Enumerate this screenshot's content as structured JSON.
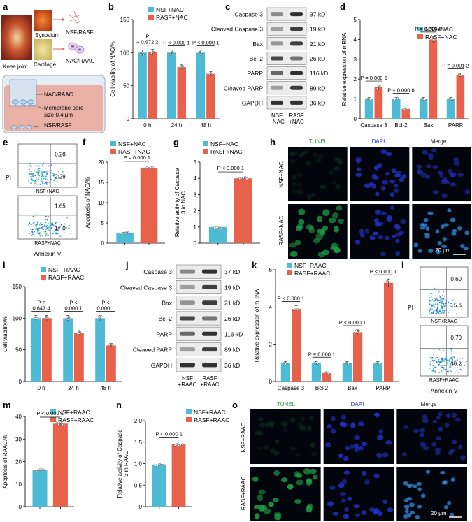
{
  "colors": {
    "nsf": "#4dbbd5",
    "rasf": "#e8614a",
    "tunel": "#1fa04a",
    "dapi": "#2233cc",
    "flowdot": "#3a9bd9"
  },
  "panel_labels": [
    "a",
    "b",
    "c",
    "d",
    "e",
    "f",
    "g",
    "h",
    "i",
    "j",
    "k",
    "l",
    "m",
    "n",
    "o"
  ],
  "a": {
    "knee": "Knee joint",
    "synovium": "Synovium",
    "cartilage": "Cartilage",
    "nsf_rasf": "NSF/RASF",
    "nac_raac": "NAC/RAAC",
    "trans_top": "NAC/RAAC",
    "membrane": "Membrane pore",
    "pore": "size 0.4 μm",
    "trans_bottom": "NSF/RASF"
  },
  "b": {
    "ylabel": "Cell viability of NAC/%",
    "legend": [
      "NSF+NAC",
      "RASF+NAC"
    ],
    "chart_data": {
      "type": "bar",
      "categories": [
        "0 h",
        "24 h",
        "48 h"
      ],
      "ylim": [
        0,
        150
      ],
      "yticks": [
        "0",
        "50",
        "100",
        "150"
      ],
      "series": [
        {
          "name": "NSF+NAC",
          "values": [
            100,
            100,
            100
          ]
        },
        {
          "name": "RASF+NAC",
          "values": [
            101,
            78,
            68
          ]
        }
      ],
      "pvals": [
        [
          "P",
          "= 0.972 2"
        ],
        [
          "P < 0.000 1"
        ],
        [
          "P < 0.000 1"
        ]
      ]
    }
  },
  "c": {
    "rows": [
      "Caspase 3",
      "Cleaved Caspase 3",
      "Bax",
      "Bcl-2",
      "PARP",
      "Cleaved PARP",
      "GAPDH"
    ],
    "kd": [
      "37 kD",
      "19 kD",
      "21 kD",
      "26 kD",
      "116 kD",
      "89 kD",
      "36 kD"
    ],
    "lanes": [
      [
        "NSF",
        "+NAC"
      ],
      [
        "RASF",
        "+NAC"
      ]
    ]
  },
  "d": {
    "ylabel": "Relative expression of mRNA",
    "legend": [
      "NSF+NAC",
      "RASF+NAC"
    ],
    "chart_data": {
      "type": "bar",
      "categories": [
        "Caspase 3",
        "Bcl-2",
        "Bax",
        "PARP"
      ],
      "ylim": [
        0,
        5
      ],
      "yticks": [
        "0",
        "1",
        "2",
        "3",
        "4",
        "5"
      ],
      "series": [
        {
          "name": "NSF+NAC",
          "values": [
            1,
            1,
            1,
            1
          ]
        },
        {
          "name": "RASF+NAC",
          "values": [
            1.6,
            0.5,
            4.0,
            2.2
          ]
        }
      ],
      "pvals": [
        "P = 0.000 5",
        "P = 0.000 6",
        "P = 0.000 5",
        "P = 0.001 2"
      ]
    }
  },
  "e": {
    "ylabel": "PI",
    "xlabel": "Annexin V",
    "top": {
      "ul": "0.28",
      "lr": "2.29",
      "name": "NSF+NAC"
    },
    "bottom": {
      "ul": "1.65",
      "lr": "17.0",
      "name": "RASF+NAC"
    }
  },
  "f": {
    "ylabel": "Apoptosis of NAC/%",
    "legend": [
      "NSF+NAC",
      "RASF+NAC"
    ],
    "chart_data": {
      "type": "bar",
      "ylim": [
        0,
        20
      ],
      "yticks": [
        "0",
        "5",
        "10",
        "15",
        "20"
      ],
      "series": [
        {
          "name": "NSF+NAC",
          "values": [
            2.6
          ]
        },
        {
          "name": "RASF+NAC",
          "values": [
            18.6
          ]
        }
      ],
      "pval": "P < 0.000 1"
    }
  },
  "g": {
    "ylabel": "Relative activity of Caspase 3 in NAC",
    "legend": [
      "NSF+NAC",
      "RASF+NAC"
    ],
    "chart_data": {
      "type": "bar",
      "ylim": [
        0,
        5
      ],
      "yticks": [
        "0",
        "1",
        "2",
        "3",
        "4",
        "5"
      ],
      "series": [
        {
          "name": "NSF+NAC",
          "values": [
            1.0
          ]
        },
        {
          "name": "RASF+NAC",
          "values": [
            4.0
          ]
        }
      ],
      "pval": "P < 0.000 1"
    }
  },
  "h": {
    "cols": [
      "TUNEL",
      "DAPI",
      "Merge"
    ],
    "rows": [
      "NSF+NAC",
      "RASF+NAC"
    ],
    "scale": "20 μm"
  },
  "i": {
    "ylabel": "Cell viability/%",
    "legend": [
      "NSF+RAAC",
      "RASF+RAAC"
    ],
    "chart_data": {
      "type": "bar",
      "categories": [
        "0 h",
        "24 h",
        "48 h"
      ],
      "ylim": [
        0,
        150
      ],
      "yticks": [
        "0",
        "50",
        "100",
        "150"
      ],
      "series": [
        {
          "name": "NSF+RAAC",
          "values": [
            100,
            100,
            100
          ]
        },
        {
          "name": "RASF+RAAC",
          "values": [
            100,
            77,
            57
          ]
        }
      ],
      "pvals": [
        [
          "P =",
          "0.647 4"
        ],
        [
          "P <",
          "0.000 1"
        ],
        [
          "P <",
          "0.000 1"
        ]
      ]
    }
  },
  "j": {
    "rows": [
      "Caspase 3",
      "Cleaved Caspase 3",
      "Bax",
      "Bcl-2",
      "PARP",
      "Cleaved PARP",
      "GAPDH"
    ],
    "kd": [
      "37 kD",
      "19 kD",
      "21 kD",
      "26 kD",
      "116 kD",
      "89 kD",
      "36 kD"
    ],
    "lanes": [
      [
        "NSF",
        "+RAAC"
      ],
      [
        "RASF",
        "+RAAC"
      ]
    ]
  },
  "k": {
    "ylabel": "Relative expression of mRNA",
    "legend": [
      "NSF+RAAC",
      "RASF+RAAC"
    ],
    "chart_data": {
      "type": "bar",
      "categories": [
        "Caspase 3",
        "Bcl-2",
        "Bax",
        "PARP"
      ],
      "ylim": [
        0,
        6
      ],
      "yticks": [
        "0",
        "2",
        "4",
        "6"
      ],
      "series": [
        {
          "name": "NSF+RAAC",
          "values": [
            1,
            1,
            1,
            1
          ]
        },
        {
          "name": "RASF+RAAC",
          "values": [
            3.9,
            0.45,
            2.65,
            5.3
          ]
        }
      ],
      "pvals": [
        "P < 0.000 1",
        "P = 0.000 1",
        "P < 0.000 1",
        "P < 0.000 1"
      ]
    }
  },
  "l": {
    "ylabel": "PI",
    "xlabel": "Annexin V",
    "top": {
      "ul": "0.60",
      "lr": "15.6",
      "name": "NSF+RAAC"
    },
    "bottom": {
      "ul": "0.70",
      "lr": "36.2",
      "name": "RASF+RAAC"
    }
  },
  "m": {
    "ylabel": "Apoptosis of RAAC/%",
    "legend": [
      "NSF+RAAC",
      "RASF+RAAC"
    ],
    "chart_data": {
      "type": "bar",
      "ylim": [
        0,
        40
      ],
      "yticks": [
        "0",
        "10",
        "20",
        "30",
        "40"
      ],
      "series": [
        {
          "name": "NSF+RAAC",
          "values": [
            16.2
          ]
        },
        {
          "name": "RASF+RAAC",
          "values": [
            36.8
          ]
        }
      ],
      "pval": "P < 0.000 1"
    }
  },
  "n": {
    "ylabel": "Relative activity of Caspase 3 in RAAC",
    "legend": [
      "NSF+RAAC",
      "RASF+RAAC"
    ],
    "chart_data": {
      "type": "bar",
      "ylim": [
        0,
        2
      ],
      "yticks": [
        "0",
        "0.5",
        "1.0",
        "1.5",
        "2.0"
      ],
      "series": [
        {
          "name": "NSF+RAAC",
          "values": [
            0.98
          ]
        },
        {
          "name": "RASF+RAAC",
          "values": [
            1.45
          ]
        }
      ],
      "pval": "P < 0.000 1"
    }
  },
  "o": {
    "cols": [
      "TUNEL",
      "DAPI",
      "Merge"
    ],
    "rows": [
      "NSF+RAAC",
      "RASF+RAAC"
    ],
    "scale": "20 μm"
  }
}
